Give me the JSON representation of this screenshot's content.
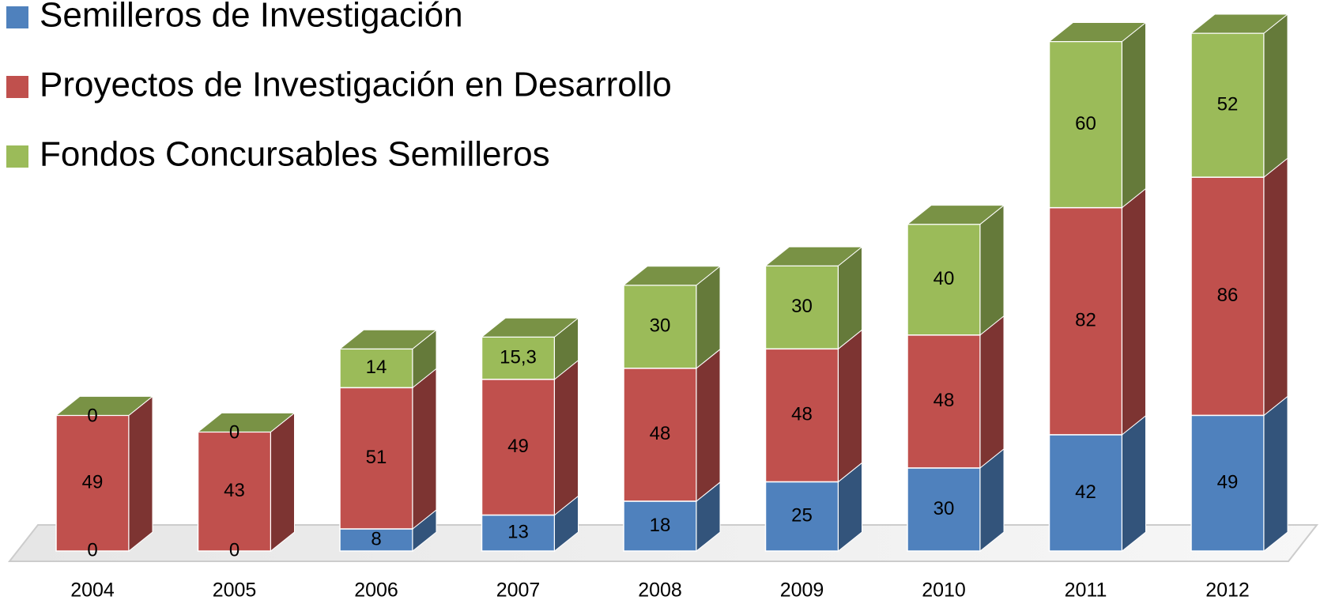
{
  "chart_data": {
    "type": "bar3d_stacked",
    "categories": [
      "2004",
      "2005",
      "2006",
      "2007",
      "2008",
      "2009",
      "2010",
      "2011",
      "2012"
    ],
    "series": [
      {
        "name": "Semilleros de Investigación",
        "color": "#4f81bd",
        "values": [
          0,
          0,
          8,
          13,
          18,
          25,
          30,
          42,
          49
        ]
      },
      {
        "name": "Proyectos de Investigación en Desarrollo",
        "color": "#c0504d",
        "values": [
          49,
          43,
          51,
          49,
          48,
          48,
          48,
          82,
          86
        ]
      },
      {
        "name": "Fondos Concursables Semilleros",
        "color": "#9bbb59",
        "values": [
          0,
          0,
          14,
          15.3,
          30,
          30,
          40,
          60,
          52
        ],
        "value_labels": [
          "0",
          "0",
          "14",
          "15,3",
          "30",
          "30",
          "40",
          "60",
          "52"
        ]
      }
    ],
    "legend": "upper left"
  }
}
